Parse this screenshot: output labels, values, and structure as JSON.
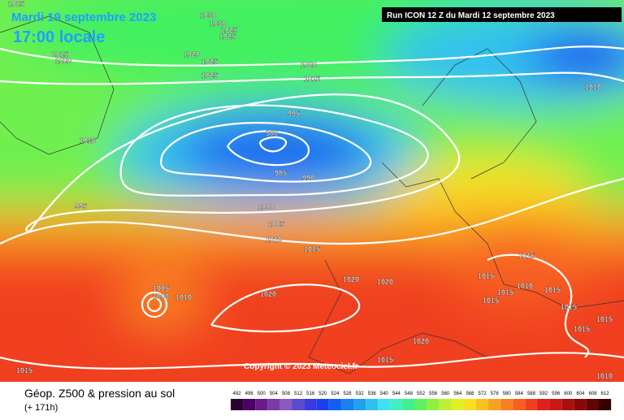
{
  "header": {
    "date": "Mardi 19 septembre 2023",
    "time": "17:00 locale",
    "run": "Run ICON 12 Z du Mardi 12 septembre 2023"
  },
  "copyright": "Copyright © 2023 Meteociel.fr",
  "legend": {
    "title": "Géop. Z500 & pression au sol",
    "lead": "(+ 171h)",
    "values": [
      492,
      496,
      500,
      504,
      508,
      512,
      516,
      520,
      524,
      528,
      532,
      536,
      540,
      544,
      548,
      552,
      556,
      560,
      564,
      568,
      572,
      576,
      580,
      584,
      588,
      592,
      596,
      600,
      604,
      608,
      612
    ],
    "colors": [
      "#2a0033",
      "#4b0066",
      "#6a1a8a",
      "#7a3aa8",
      "#8a5ac0",
      "#5a4ad0",
      "#3a3ae0",
      "#1a40f0",
      "#1060f0",
      "#1a80f0",
      "#20a0f0",
      "#30c0f0",
      "#40e0f0",
      "#40f0c0",
      "#40f090",
      "#60f060",
      "#90f040",
      "#c0f030",
      "#e0f020",
      "#f8e020",
      "#f8c020",
      "#f8a020",
      "#f88020",
      "#f86020",
      "#f04020",
      "#e02020",
      "#c81818",
      "#a81010",
      "#880808",
      "#600404",
      "#380000"
    ]
  },
  "isobar_labels": [
    "1025",
    "1030",
    "1030",
    "1025",
    "1025",
    "1020",
    "1025",
    "1025",
    "1015",
    "1020",
    "1020",
    "1015",
    "1010",
    "995",
    "980",
    "985",
    "990",
    "1010",
    "995",
    "1000",
    "1005",
    "1010",
    "1015",
    "1020",
    "1020",
    "1005",
    "1000",
    "1010",
    "1020",
    "1020",
    "1015",
    "1015",
    "1010",
    "1015",
    "1015",
    "1015",
    "1015",
    "1010",
    "1015",
    "1015",
    "1015",
    "1015"
  ]
}
